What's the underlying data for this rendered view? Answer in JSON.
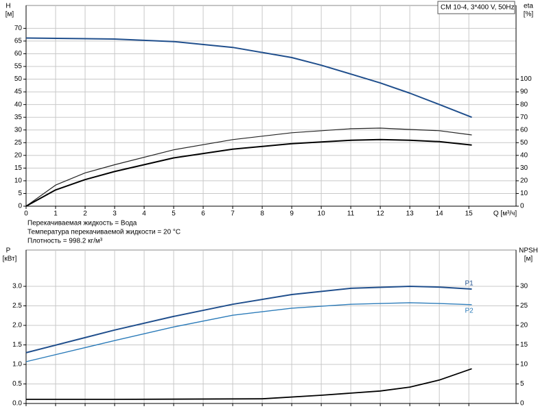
{
  "chart_data": [
    {
      "type": "line",
      "title": "CM 10-4, 3*400 V, 50Hz",
      "ylabel": "H",
      "yunit": "[м]",
      "y2label": "eta",
      "y2unit": "[%]",
      "xlabel": "Q [м³/ч]",
      "annotations": [
        "Перекачиваемая жидкость = Вода",
        "Температура перекачиваемой жидкости = 20 °C",
        "Плотность = 998.2 кг/м³"
      ],
      "xlim": [
        0,
        16.6
      ],
      "xticks": [
        0,
        1,
        2,
        3,
        4,
        5,
        6,
        7,
        8,
        9,
        10,
        11,
        12,
        13,
        14,
        15
      ],
      "ylim": [
        0,
        79
      ],
      "yticks": [
        0,
        5,
        10,
        15,
        20,
        25,
        30,
        35,
        40,
        45,
        50,
        55,
        60,
        65,
        70
      ],
      "y2lim": [
        0,
        158
      ],
      "y2ticks": [
        0,
        10,
        20,
        30,
        40,
        50,
        60,
        70,
        80,
        90,
        100
      ],
      "grid": true,
      "series": [
        {
          "color": "#1f4e8c",
          "line_width": 2,
          "x": [
            0,
            3,
            5,
            7,
            9,
            10,
            11,
            12,
            13,
            14,
            15.1
          ],
          "values": [
            66.2,
            65.8,
            64.8,
            62.5,
            58.5,
            55.5,
            52,
            48.5,
            44.5,
            40,
            35
          ]
        },
        {
          "color": "#222222",
          "line_width": 1.2,
          "axis": "y2",
          "x": [
            0,
            1,
            2,
            3,
            5,
            7,
            9,
            11,
            12,
            13,
            14,
            15.1
          ],
          "values": [
            0,
            16.6,
            26.2,
            32.6,
            44.4,
            52.4,
            57.8,
            61,
            61.5,
            60.4,
            59.4,
            56.1
          ]
        },
        {
          "color": "#000000",
          "line_width": 2,
          "axis": "y2",
          "x": [
            0,
            1,
            2,
            3,
            5,
            7,
            9,
            11,
            12,
            13,
            14,
            15.1
          ],
          "values": [
            0,
            12.8,
            20.9,
            27.3,
            38,
            44.9,
            49.2,
            51.9,
            52.4,
            51.9,
            50.8,
            48.1
          ]
        }
      ]
    },
    {
      "type": "line",
      "ylabel": "P",
      "yunit": "[кВт]",
      "y2label": "NPSH",
      "y2unit": "[м]",
      "xlim": [
        0,
        16.6
      ],
      "xticks": [
        0,
        1,
        2,
        3,
        4,
        5,
        6,
        7,
        8,
        9,
        10,
        11,
        12,
        13,
        14,
        15
      ],
      "xtick_labels": false,
      "ylim": [
        0,
        3.93
      ],
      "yticks": [
        {
          "value": 0,
          "label": "0.0"
        },
        {
          "value": 0.5,
          "label": "0.5"
        },
        {
          "value": 1,
          "label": "1.0"
        },
        {
          "value": 1.5,
          "label": "1.5"
        },
        {
          "value": 2,
          "label": "2.0"
        },
        {
          "value": 2.5,
          "label": "2.5"
        },
        {
          "value": 3,
          "label": "3.0"
        }
      ],
      "y2lim": [
        0,
        39.3
      ],
      "y2ticks": [
        0,
        5,
        10,
        15,
        20,
        25,
        30
      ],
      "grid": true,
      "series": [
        {
          "name": "P1",
          "color": "#1f4e8c",
          "line_width": 2,
          "x": [
            0,
            3,
            5,
            7,
            9,
            11,
            13,
            14,
            15.1
          ],
          "values": [
            1.3,
            1.88,
            2.23,
            2.54,
            2.79,
            2.95,
            3.0,
            2.98,
            2.93
          ]
        },
        {
          "name": "P2",
          "color": "#2b7bb9",
          "line_width": 1.4,
          "x": [
            0,
            3,
            5,
            7,
            9,
            11,
            13,
            14,
            15.1
          ],
          "values": [
            1.07,
            1.61,
            1.96,
            2.26,
            2.44,
            2.54,
            2.58,
            2.56,
            2.53
          ]
        },
        {
          "color": "#000000",
          "line_width": 1.8,
          "axis": "y2",
          "x": [
            0,
            3,
            8,
            10,
            12,
            13,
            14,
            15.1
          ],
          "values": [
            1.05,
            1.05,
            1.2,
            2.1,
            3.2,
            4.2,
            6.0,
            8.9
          ]
        }
      ]
    }
  ]
}
